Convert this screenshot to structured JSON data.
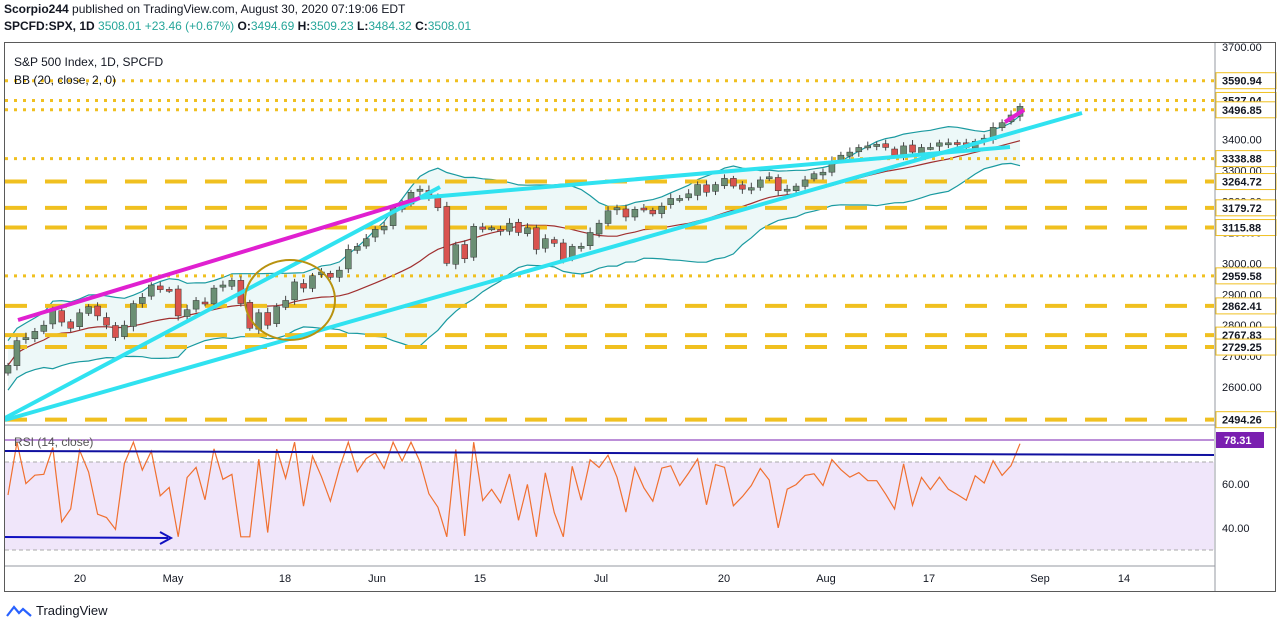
{
  "header": {
    "publisher": "Scorpio244",
    "published_text": "published on TradingView.com, August 30, 2020 07:19:06 EDT",
    "symbol": "SPCFD:SPX, 1D",
    "last": "3508.01",
    "change": "+23.46 (+0.67%)",
    "o_label": "O:",
    "o": "3494.69",
    "h_label": "H:",
    "h": "3509.23",
    "l_label": "L:",
    "l": "3484.32",
    "c_label": "C:",
    "c": "3508.01"
  },
  "legend": {
    "title": "S&P 500 Index, 1D, SPCFD",
    "indicator": "BB (20, close, 2, 0)",
    "rsi": "RSI (14, close)"
  },
  "brand": "TradingView",
  "colors": {
    "up": "#6b8f74",
    "down": "#d9534f",
    "trendline": "#30e2f0",
    "channel": "#e020d0",
    "levels": "#f0c020",
    "bb": "#1a9aa0",
    "basis": "#a03030",
    "rsi": "#f07030",
    "rsi_band": "#f0e6fa",
    "rsi_line": "#1010a0",
    "price_tag": "#ffffff",
    "rsi_tag": "#7a1fb0"
  },
  "chart_data": {
    "type": "candlestick",
    "price_axis": {
      "ticks": [
        3700,
        3500,
        3400,
        3300,
        3200,
        3100,
        3000,
        2900,
        2800,
        2700,
        2600
      ],
      "labels": [
        "3700.00",
        "3500.00",
        "3400.00",
        "3300.00",
        "3200.00",
        "3100.00",
        "3000.00",
        "2900.00",
        "2800.00",
        "2700.00",
        "2600.00"
      ]
    },
    "time_axis": [
      "20",
      "May",
      "18",
      "Jun",
      "15",
      "Jul",
      "20",
      "Aug",
      "17",
      "Sep",
      "14"
    ],
    "levels": [
      {
        "value": 3590.94,
        "label": "3590.94",
        "style": "dotted"
      },
      {
        "value": 3527.04,
        "label": "3527.04",
        "style": "dotted"
      },
      {
        "value": 3496.85,
        "label": "3496.85",
        "style": "dotted"
      },
      {
        "value": 3338.88,
        "label": "3338.88",
        "style": "dotted"
      },
      {
        "value": 3264.72,
        "label": "3264.72",
        "style": "dashed"
      },
      {
        "value": 3179.72,
        "label": "3179.72",
        "style": "dashed"
      },
      {
        "value": 3115.88,
        "label": "3115.88",
        "style": "dashed"
      },
      {
        "value": 2959.58,
        "label": "2959.58",
        "style": "dotted"
      },
      {
        "value": 2862.41,
        "label": "2862.41",
        "style": "dashed"
      },
      {
        "value": 2767.83,
        "label": "2767.83",
        "style": "dashed"
      },
      {
        "value": 2729.25,
        "label": "2729.25",
        "style": "dashed"
      },
      {
        "value": 2494.26,
        "label": "2494.26",
        "style": "dashed"
      }
    ],
    "closes": [
      2670,
      2750,
      2760,
      2780,
      2800,
      2850,
      2810,
      2790,
      2840,
      2860,
      2830,
      2800,
      2760,
      2800,
      2870,
      2890,
      2930,
      2915,
      2912,
      2830,
      2850,
      2880,
      2870,
      2920,
      2930,
      2945,
      2870,
      2790,
      2840,
      2800,
      2860,
      2880,
      2940,
      2920,
      2960,
      2972,
      2955,
      2978,
      3045,
      3055,
      3080,
      3110,
      3120,
      3180,
      3193,
      3230,
      3240,
      3215,
      3180,
      3000,
      3060,
      3015,
      3120,
      3110,
      3115,
      3105,
      3130,
      3100,
      3115,
      3045,
      3080,
      3065,
      3010,
      3055,
      3055,
      3100,
      3130,
      3170,
      3180,
      3150,
      3175,
      3175,
      3160,
      3185,
      3210,
      3210,
      3225,
      3255,
      3230,
      3255,
      3275,
      3250,
      3240,
      3245,
      3270,
      3280,
      3235,
      3240,
      3250,
      3270,
      3290,
      3295,
      3330,
      3350,
      3360,
      3375,
      3380,
      3385,
      3375,
      3350,
      3380,
      3360,
      3375,
      3375,
      3390,
      3390,
      3385,
      3375,
      3395,
      3405,
      3440,
      3455,
      3480,
      3508
    ],
    "rsi": {
      "ticks": [
        60,
        40
      ],
      "labels": [
        "60.00",
        "40.00"
      ],
      "last": 78.31,
      "last_label": "78.31",
      "upper": 70,
      "lower": 30
    }
  }
}
